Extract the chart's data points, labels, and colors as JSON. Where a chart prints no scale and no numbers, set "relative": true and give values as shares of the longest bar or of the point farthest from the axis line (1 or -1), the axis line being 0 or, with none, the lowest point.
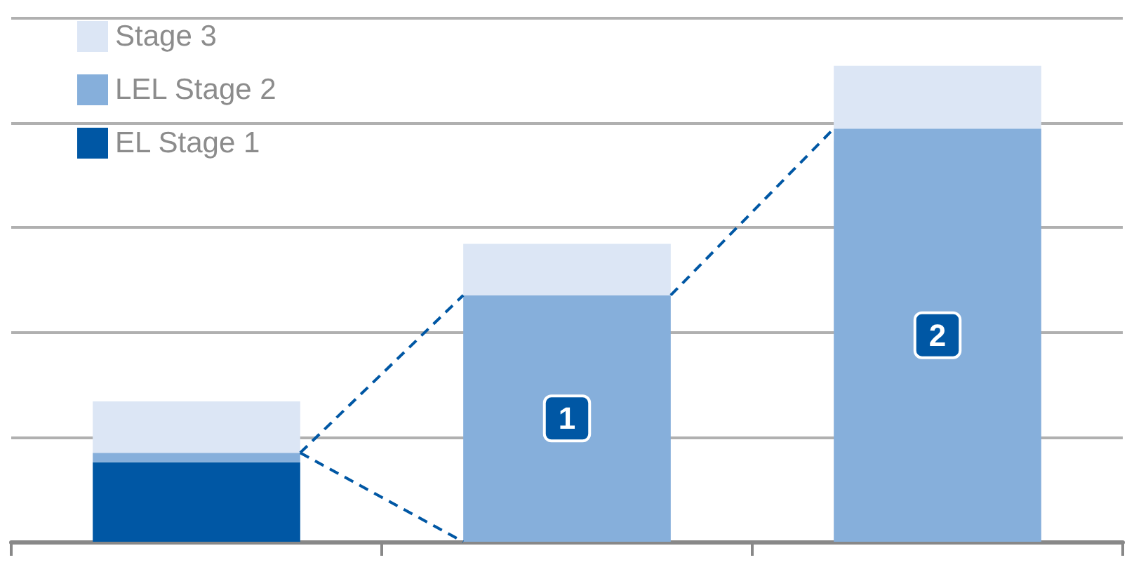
{
  "chart_data": {
    "type": "bar",
    "stacked": true,
    "relative": true,
    "categories": [
      null,
      null,
      null
    ],
    "series": [
      {
        "name": "EL Stage 1",
        "color": "#0057a4",
        "values": [
          0.167,
          0,
          0
        ]
      },
      {
        "name": "LEL Stage 2",
        "color": "#86afdb",
        "values": [
          0.02,
          0.518,
          0.868
        ]
      },
      {
        "name": "Stage 3",
        "color": "#dce6f5",
        "values": [
          0.108,
          0.108,
          0.132
        ]
      }
    ],
    "annotations": [
      "1",
      "2"
    ],
    "grid": "y",
    "legend": "top left"
  }
}
